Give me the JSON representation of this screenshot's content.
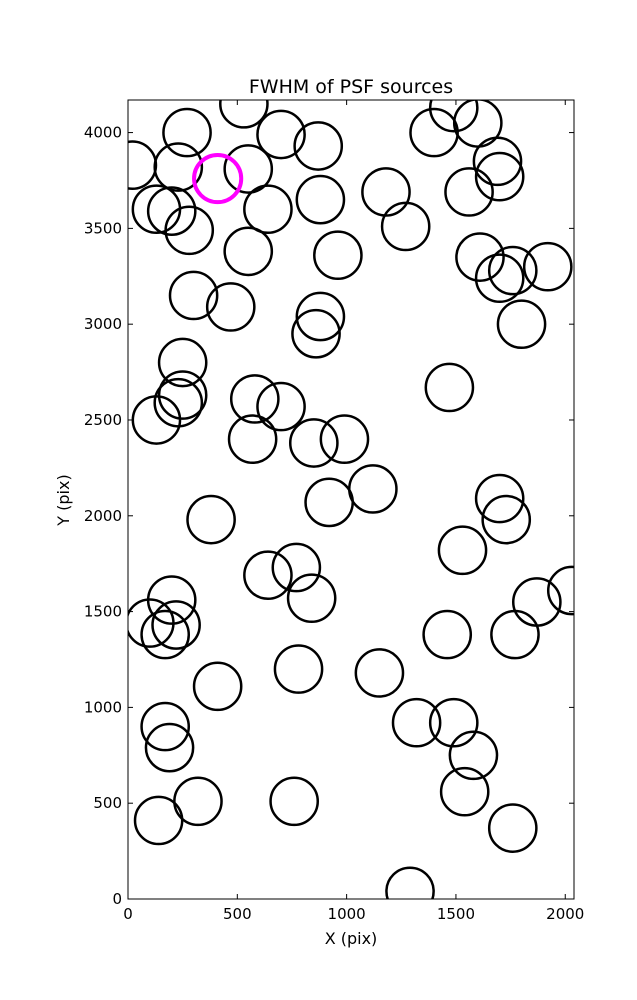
{
  "chart_data": {
    "type": "scatter",
    "title": "FWHM of PSF sources",
    "xlabel": "X (pix)",
    "ylabel": "Y (pix)",
    "xlim": [
      0,
      2040
    ],
    "ylim": [
      0,
      4170
    ],
    "xticks": [
      0,
      500,
      1000,
      1500,
      2000
    ],
    "yticks": [
      0,
      500,
      1000,
      1500,
      2000,
      2500,
      3000,
      3500,
      4000
    ],
    "marker": "circle",
    "marker_radius": 115,
    "grid": false,
    "series": [
      {
        "color": "#000000",
        "points": [
          [
            20,
            3830
          ],
          [
            230,
            3820
          ],
          [
            270,
            4000
          ],
          [
            130,
            3600
          ],
          [
            200,
            3590
          ],
          [
            280,
            3490
          ],
          [
            530,
            4150
          ],
          [
            550,
            3810
          ],
          [
            700,
            3990
          ],
          [
            870,
            3930
          ],
          [
            640,
            3600
          ],
          [
            880,
            3650
          ],
          [
            550,
            3380
          ],
          [
            960,
            3360
          ],
          [
            1180,
            3690
          ],
          [
            1270,
            3510
          ],
          [
            1400,
            4000
          ],
          [
            1490,
            4130
          ],
          [
            1600,
            4050
          ],
          [
            1560,
            3690
          ],
          [
            1690,
            3850
          ],
          [
            1700,
            3770
          ],
          [
            1610,
            3350
          ],
          [
            1700,
            3240
          ],
          [
            1760,
            3280
          ],
          [
            1920,
            3300
          ],
          [
            1800,
            3000
          ],
          [
            300,
            3150
          ],
          [
            470,
            3090
          ],
          [
            880,
            3040
          ],
          [
            860,
            2950
          ],
          [
            250,
            2800
          ],
          [
            250,
            2630
          ],
          [
            230,
            2590
          ],
          [
            130,
            2500
          ],
          [
            580,
            2610
          ],
          [
            700,
            2570
          ],
          [
            570,
            2400
          ],
          [
            850,
            2380
          ],
          [
            990,
            2400
          ],
          [
            1470,
            2670
          ],
          [
            380,
            1980
          ],
          [
            920,
            2070
          ],
          [
            1120,
            2140
          ],
          [
            1530,
            1820
          ],
          [
            1700,
            2090
          ],
          [
            1730,
            1980
          ],
          [
            640,
            1690
          ],
          [
            770,
            1730
          ],
          [
            840,
            1570
          ],
          [
            200,
            1560
          ],
          [
            220,
            1430
          ],
          [
            100,
            1440
          ],
          [
            170,
            1380
          ],
          [
            1460,
            1380
          ],
          [
            1770,
            1380
          ],
          [
            1870,
            1550
          ],
          [
            2030,
            1610
          ],
          [
            410,
            1110
          ],
          [
            780,
            1200
          ],
          [
            1150,
            1180
          ],
          [
            170,
            900
          ],
          [
            190,
            790
          ],
          [
            1320,
            920
          ],
          [
            1490,
            920
          ],
          [
            1580,
            750
          ],
          [
            320,
            510
          ],
          [
            760,
            510
          ],
          [
            140,
            410
          ],
          [
            1540,
            560
          ],
          [
            1760,
            370
          ],
          [
            1290,
            40
          ]
        ]
      },
      {
        "color": "#ff00ff",
        "points": [
          [
            410,
            3760
          ]
        ]
      }
    ]
  }
}
